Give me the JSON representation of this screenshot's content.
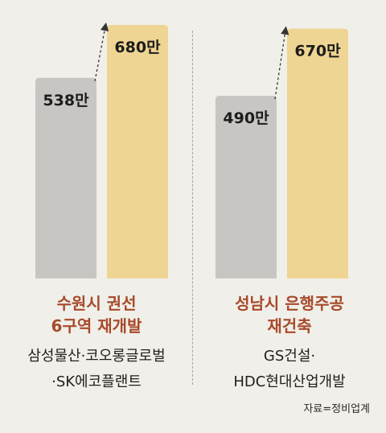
{
  "chart_data": {
    "type": "bar",
    "groups": [
      {
        "title_lines": [
          "수원시 권선",
          "6구역 재개발"
        ],
        "companies": [
          "삼성물산·코오롱글로벌",
          "·SK에코플랜트"
        ],
        "bars": [
          {
            "value": 538,
            "label": "538만"
          },
          {
            "value": 680,
            "label": "680만"
          }
        ]
      },
      {
        "title_lines": [
          "성남시 은행주공",
          "재건축"
        ],
        "companies": [
          "GS건설·",
          "HDC현대산업개발"
        ],
        "bars": [
          {
            "value": 490,
            "label": "490만"
          },
          {
            "value": 670,
            "label": "670만"
          }
        ]
      }
    ],
    "ylim": [
      0,
      690
    ]
  },
  "colors": {
    "before": "#c8c6c3",
    "after": "#efd593",
    "title": "#a74a2b",
    "arrow": "#333333"
  },
  "source": "자료=정비업계"
}
